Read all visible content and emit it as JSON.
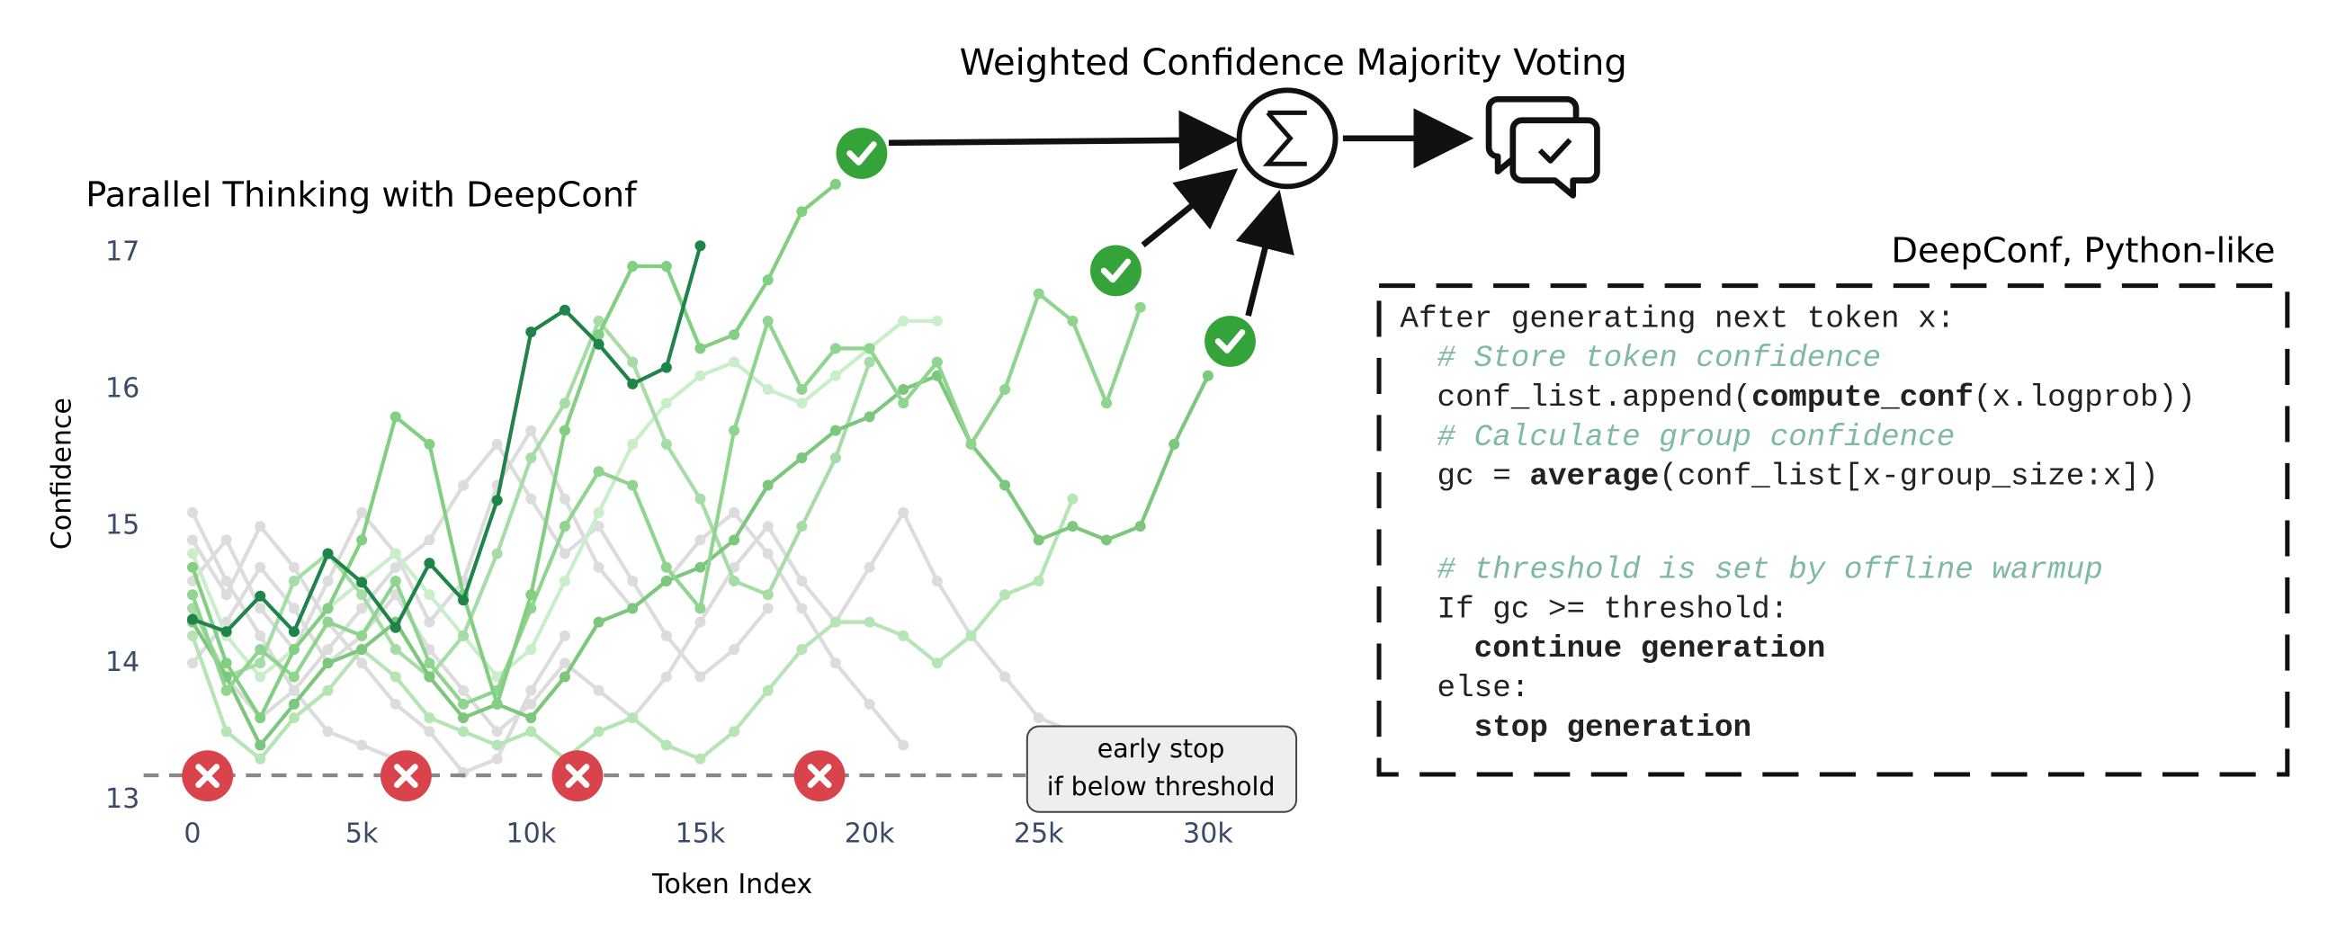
{
  "chart_data": {
    "type": "line",
    "title": "Parallel Thinking with DeepConf",
    "xlabel": "Token Index",
    "ylabel": "Confidence",
    "xlim": [
      -1000,
      33000
    ],
    "ylim": [
      13,
      17.7
    ],
    "xticks": [
      0,
      {
        "value": 5000,
        "label": "5k"
      },
      {
        "value": 10000,
        "label": "10k"
      },
      {
        "value": 15000,
        "label": "15k"
      },
      {
        "value": 20000,
        "label": "20k"
      },
      {
        "value": 25000,
        "label": "25k"
      },
      {
        "value": 30000,
        "label": "30k"
      }
    ],
    "yticks": [
      13,
      14,
      15,
      16,
      17
    ],
    "threshold": 13.18,
    "annotation": [
      "early stop",
      "if below threshold"
    ],
    "series": [
      {
        "color": "#dcdcdc",
        "x": [
          0,
          1000,
          2000,
          3000,
          4000,
          5000,
          6000
        ],
        "values": [
          15.1,
          14.6,
          14.2,
          13.8,
          13.5,
          13.4,
          13.3
        ]
      },
      {
        "color": "#dcdcdc",
        "x": [
          0,
          1000,
          2000,
          3000,
          4000,
          5000,
          6000,
          7000,
          8000,
          9000,
          10000,
          11000
        ],
        "values": [
          14.9,
          14.5,
          15.0,
          14.7,
          14.3,
          14.0,
          13.7,
          13.5,
          13.2,
          13.3,
          13.8,
          14.2
        ]
      },
      {
        "color": "#dcdcdc",
        "x": [
          0,
          1000,
          2000,
          3000,
          4000,
          5000,
          6000,
          7000,
          8000,
          9000,
          10000,
          11000,
          12000,
          13000,
          14000,
          15000,
          16000,
          17000,
          18000,
          19000,
          20000,
          21000
        ],
        "values": [
          14.6,
          14.9,
          14.4,
          14.1,
          14.6,
          15.1,
          14.8,
          14.3,
          14.6,
          15.3,
          15.7,
          15.2,
          14.7,
          14.4,
          14.6,
          14.9,
          15.1,
          14.8,
          14.4,
          14.0,
          13.7,
          13.4
        ]
      },
      {
        "color": "#dcdcdc",
        "x": [
          0,
          1000,
          2000,
          3000,
          4000,
          5000,
          6000,
          7000,
          8000,
          9000,
          10000,
          11000,
          12000,
          13000,
          14000,
          15000,
          16000,
          17000,
          18000,
          19000,
          20000,
          21000,
          22000,
          23000,
          24000,
          25000,
          26000
        ],
        "values": [
          14.0,
          14.3,
          14.7,
          14.4,
          14.0,
          14.2,
          14.5,
          14.1,
          13.8,
          13.5,
          13.7,
          14.0,
          13.8,
          13.6,
          13.9,
          14.3,
          14.7,
          15.0,
          14.6,
          14.3,
          14.7,
          15.1,
          14.6,
          14.2,
          13.9,
          13.6,
          13.5
        ]
      },
      {
        "color": "#dcdcdc",
        "x": [
          0,
          1000,
          2000,
          3000,
          4000,
          5000,
          6000,
          7000,
          8000,
          9000,
          10000,
          11000,
          12000,
          13000,
          14000,
          15000,
          16000,
          17000
        ],
        "values": [
          14.4,
          13.9,
          13.6,
          13.8,
          14.1,
          14.4,
          14.7,
          14.9,
          15.3,
          15.6,
          15.2,
          14.8,
          15.0,
          14.6,
          14.2,
          13.9,
          14.1,
          14.4
        ]
      },
      {
        "color": "#c9eec9",
        "x": [
          0,
          1000,
          2000,
          3000,
          4000,
          5000,
          6000,
          7000,
          8000,
          9000,
          10000,
          11000,
          12000,
          13000,
          14000,
          15000,
          16000,
          17000,
          18000,
          19000,
          20000,
          21000,
          22000
        ],
        "values": [
          14.8,
          14.2,
          13.9,
          14.1,
          14.4,
          14.6,
          14.8,
          14.5,
          14.2,
          13.9,
          14.1,
          14.6,
          15.1,
          15.6,
          15.9,
          16.1,
          16.2,
          16.0,
          15.9,
          16.1,
          16.3,
          16.5,
          16.5
        ]
      },
      {
        "color": "#b5e4b5",
        "x": [
          0,
          1000,
          2000,
          3000,
          4000,
          5000,
          6000,
          7000,
          8000,
          9000,
          10000,
          11000,
          12000,
          13000,
          14000,
          15000,
          16000,
          17000,
          18000,
          19000,
          20000,
          21000,
          22000,
          23000,
          24000,
          25000,
          26000
        ],
        "values": [
          14.2,
          13.5,
          13.3,
          13.6,
          13.8,
          14.1,
          13.9,
          13.6,
          13.5,
          13.4,
          13.5,
          13.3,
          13.5,
          13.6,
          13.4,
          13.3,
          13.5,
          13.8,
          14.1,
          14.3,
          14.3,
          14.2,
          14.0,
          14.2,
          14.5,
          14.6,
          15.2
        ]
      },
      {
        "color": "#a6dca6",
        "x": [
          0,
          1000,
          2000,
          3000,
          4000,
          5000,
          6000,
          7000,
          8000,
          9000,
          10000,
          11000,
          12000,
          13000,
          14000,
          15000,
          16000,
          17000,
          18000,
          19000,
          20000
        ],
        "values": [
          14.4,
          13.9,
          14.0,
          14.6,
          14.8,
          14.5,
          14.1,
          13.9,
          14.2,
          14.8,
          15.5,
          15.9,
          16.5,
          16.2,
          15.6,
          15.2,
          14.6,
          14.5,
          15.0,
          15.5,
          16.2
        ]
      },
      {
        "color": "#7cc77c",
        "x": [
          0,
          1000,
          2000,
          3000,
          4000,
          5000,
          6000,
          7000,
          8000,
          9000,
          10000,
          11000,
          12000,
          13000,
          14000,
          15000,
          16000,
          17000,
          18000,
          19000,
          20000,
          21000,
          22000,
          23000,
          24000,
          25000,
          26000,
          27000,
          28000,
          29000,
          30000
        ],
        "values": [
          14.3,
          13.9,
          13.4,
          13.7,
          14.0,
          14.1,
          14.3,
          13.9,
          13.6,
          13.7,
          13.6,
          13.9,
          14.3,
          14.4,
          14.6,
          14.7,
          14.9,
          15.3,
          15.5,
          15.7,
          15.8,
          16.0,
          16.1,
          15.6,
          15.3,
          14.9,
          15.0,
          14.9,
          15.0,
          15.6,
          16.1
        ]
      },
      {
        "color": "#8fd48f",
        "x": [
          0,
          1000,
          2000,
          3000,
          4000,
          5000,
          6000,
          7000,
          8000,
          9000,
          10000,
          11000,
          12000,
          13000,
          14000,
          15000,
          16000,
          17000,
          18000,
          19000,
          20000,
          21000,
          22000,
          23000,
          24000,
          25000,
          26000,
          27000,
          28000
        ],
        "values": [
          14.5,
          13.8,
          14.1,
          13.9,
          14.3,
          14.2,
          14.6,
          14.0,
          13.7,
          13.8,
          14.4,
          15.0,
          15.4,
          15.3,
          14.7,
          14.4,
          15.7,
          16.5,
          16.0,
          16.3,
          16.3,
          15.9,
          16.2,
          15.6,
          16.0,
          16.7,
          16.5,
          15.9,
          16.6
        ]
      },
      {
        "color": "#82cf82",
        "x": [
          0,
          1000,
          2000,
          3000,
          4000,
          5000,
          6000,
          7000,
          8000,
          9000,
          10000,
          11000,
          12000,
          13000,
          14000,
          15000,
          16000,
          17000,
          18000,
          19000
        ],
        "values": [
          14.7,
          14.0,
          13.6,
          14.1,
          14.4,
          14.9,
          15.8,
          15.6,
          14.5,
          13.7,
          14.5,
          15.7,
          16.4,
          16.9,
          16.9,
          16.3,
          16.4,
          16.8,
          17.3,
          17.5
        ]
      },
      {
        "color": "#1e8449",
        "x": [
          0,
          1000,
          2000,
          3000,
          4000,
          5000,
          6000,
          7000,
          8000,
          9000,
          10000,
          11000,
          12000,
          13000,
          14000,
          15000
        ],
        "values": [
          14.32,
          14.23,
          14.49,
          14.23,
          14.8,
          14.59,
          14.26,
          14.73,
          14.46,
          15.19,
          16.42,
          16.58,
          16.33,
          16.04,
          16.16,
          17.05
        ]
      }
    ]
  },
  "voting": {
    "title": "Weighted Confidence Majority Voting"
  },
  "code": {
    "title": "DeepConf, Python-like",
    "blocks": [
      [
        [
          {
            "text": "After generating next token x:"
          }
        ],
        [
          {
            "text": "  # Store token confidence",
            "style": "comment"
          }
        ],
        [
          {
            "text": "  conf_list.append("
          },
          {
            "text": "compute_conf",
            "style": "bold"
          },
          {
            "text": "(x.logprob))"
          }
        ],
        [
          {
            "text": "  # Calculate group confidence",
            "style": "comment"
          }
        ],
        [
          {
            "text": "  gc = "
          },
          {
            "text": "average",
            "style": "bold"
          },
          {
            "text": "(conf_list[x-group_size:x])"
          }
        ]
      ],
      [
        [
          {
            "text": "  # threshold is set by offline warmup",
            "style": "comment"
          }
        ],
        [
          {
            "text": "  If gc >= threshold:"
          }
        ],
        [
          {
            "text": "    continue generation",
            "style": "bold"
          }
        ],
        [
          {
            "text": "  else:"
          }
        ],
        [
          {
            "text": "    stop generation",
            "style": "bold"
          }
        ]
      ]
    ]
  }
}
